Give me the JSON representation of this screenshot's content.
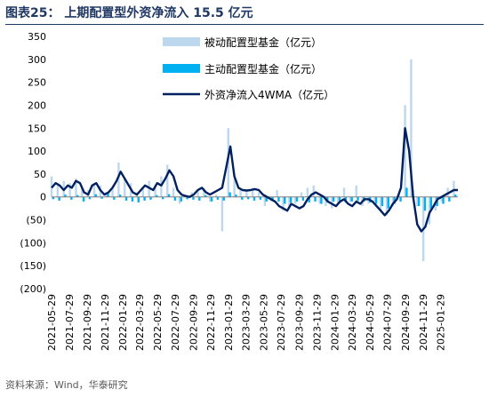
{
  "header": {
    "figure_label": "图表25：",
    "title": "上期配置型外资净流入 15.5 亿元"
  },
  "footer": {
    "source": "资料来源：Wind，华泰研究"
  },
  "colors": {
    "passive": "#bdd7ee",
    "active": "#00b0f0",
    "wma": "#002060",
    "title": "#1f3864"
  },
  "chart_data": {
    "type": "bar",
    "title": "上期配置型外资净流入 15.5 亿元",
    "xlabel": "",
    "ylabel": "",
    "ylim": [
      -200,
      350
    ],
    "yticks": [
      -200,
      -150,
      -100,
      -50,
      0,
      50,
      100,
      150,
      200,
      250,
      300,
      350
    ],
    "ytick_labels": [
      "(200)",
      "(150)",
      "(100)",
      "(50)",
      "0",
      "50",
      "100",
      "150",
      "200",
      "250",
      "300",
      "350"
    ],
    "x_start": "2021-05-29",
    "x_end": "2025-03-29",
    "xtick_labels": [
      "2021-05-29",
      "2021-07-29",
      "2021-09-29",
      "2021-11-29",
      "2022-01-29",
      "2022-03-29",
      "2022-05-29",
      "2022-07-29",
      "2022-09-29",
      "2022-11-29",
      "2023-01-29",
      "2023-03-29",
      "2023-05-29",
      "2023-07-29",
      "2023-09-29",
      "2023-11-29",
      "2024-01-29",
      "2024-03-29",
      "2024-05-29",
      "2024-07-29",
      "2024-09-29",
      "2024-11-29",
      "2025-01-29"
    ],
    "legend_position": "top-right",
    "series": [
      {
        "name": "被动配置型基金（亿元）",
        "kind": "bar",
        "color": "#bdd7ee",
        "x": [
          "2021-05-29",
          "2021-06-19",
          "2021-07-10",
          "2021-07-31",
          "2021-08-21",
          "2021-09-11",
          "2021-10-02",
          "2021-10-23",
          "2021-11-13",
          "2021-12-04",
          "2021-12-25",
          "2022-01-15",
          "2022-02-05",
          "2022-02-26",
          "2022-03-19",
          "2022-04-09",
          "2022-04-30",
          "2022-05-21",
          "2022-06-11",
          "2022-07-02",
          "2022-07-23",
          "2022-08-13",
          "2022-09-03",
          "2022-09-24",
          "2022-10-15",
          "2022-11-05",
          "2022-11-26",
          "2022-12-17",
          "2023-01-07",
          "2023-01-28",
          "2023-02-18",
          "2023-03-11",
          "2023-04-01",
          "2023-04-22",
          "2023-05-13",
          "2023-06-03",
          "2023-06-24",
          "2023-07-15",
          "2023-08-05",
          "2023-08-26",
          "2023-09-16",
          "2023-10-07",
          "2023-10-28",
          "2023-11-18",
          "2023-12-09",
          "2023-12-30",
          "2024-01-20",
          "2024-02-10",
          "2024-03-02",
          "2024-03-23",
          "2024-04-13",
          "2024-05-04",
          "2024-05-25",
          "2024-06-15",
          "2024-07-06",
          "2024-07-27",
          "2024-08-17",
          "2024-09-07",
          "2024-09-28",
          "2024-10-19",
          "2024-11-09",
          "2024-11-30",
          "2024-12-21",
          "2025-01-11",
          "2025-02-01",
          "2025-02-22",
          "2025-03-15"
        ],
        "values": [
          45,
          25,
          35,
          30,
          40,
          20,
          15,
          30,
          25,
          10,
          20,
          75,
          40,
          30,
          10,
          20,
          35,
          25,
          45,
          70,
          20,
          -15,
          5,
          10,
          15,
          20,
          -10,
          5,
          -75,
          150,
          40,
          20,
          15,
          20,
          10,
          -20,
          -10,
          15,
          -30,
          -20,
          -15,
          10,
          20,
          25,
          -15,
          -20,
          -25,
          -15,
          20,
          -10,
          25,
          -20,
          -15,
          -10,
          -30,
          -40,
          -20,
          5,
          200,
          300,
          -20,
          -140,
          -60,
          -30,
          -10,
          20,
          35
        ]
      },
      {
        "name": "主动配置型基金（亿元）",
        "kind": "bar",
        "color": "#00b0f0",
        "x": [
          "2021-05-29",
          "2021-06-19",
          "2021-07-10",
          "2021-07-31",
          "2021-08-21",
          "2021-09-11",
          "2021-10-02",
          "2021-10-23",
          "2021-11-13",
          "2021-12-04",
          "2021-12-25",
          "2022-01-15",
          "2022-02-05",
          "2022-02-26",
          "2022-03-19",
          "2022-04-09",
          "2022-04-30",
          "2022-05-21",
          "2022-06-11",
          "2022-07-02",
          "2022-07-23",
          "2022-08-13",
          "2022-09-03",
          "2022-09-24",
          "2022-10-15",
          "2022-11-05",
          "2022-11-26",
          "2022-12-17",
          "2023-01-07",
          "2023-01-28",
          "2023-02-18",
          "2023-03-11",
          "2023-04-01",
          "2023-04-22",
          "2023-05-13",
          "2023-06-03",
          "2023-06-24",
          "2023-07-15",
          "2023-08-05",
          "2023-08-26",
          "2023-09-16",
          "2023-10-07",
          "2023-10-28",
          "2023-11-18",
          "2023-12-09",
          "2023-12-30",
          "2024-01-20",
          "2024-02-10",
          "2024-03-02",
          "2024-03-23",
          "2024-04-13",
          "2024-05-04",
          "2024-05-25",
          "2024-06-15",
          "2024-07-06",
          "2024-07-27",
          "2024-08-17",
          "2024-09-07",
          "2024-09-28",
          "2024-10-19",
          "2024-11-09",
          "2024-11-30",
          "2024-12-21",
          "2025-01-11",
          "2025-02-01",
          "2025-02-22",
          "2025-03-15"
        ],
        "values": [
          -5,
          -8,
          5,
          -6,
          4,
          -10,
          -5,
          6,
          -4,
          8,
          -6,
          5,
          -8,
          -10,
          -12,
          -8,
          -6,
          4,
          -5,
          6,
          -8,
          -10,
          -5,
          -6,
          -8,
          4,
          -10,
          -6,
          -8,
          10,
          5,
          -6,
          -5,
          -8,
          -6,
          -10,
          -8,
          -10,
          -15,
          -12,
          -10,
          -8,
          -12,
          -10,
          -15,
          -12,
          -10,
          -8,
          -12,
          -10,
          -8,
          -10,
          -12,
          -15,
          -20,
          -25,
          -15,
          -10,
          20,
          15,
          -20,
          -30,
          -25,
          -20,
          -15,
          -10,
          5
        ]
      },
      {
        "name": "外资净流入4WMA（亿元）",
        "kind": "line",
        "color": "#002060",
        "x": [
          "2021-05-29",
          "2021-06-12",
          "2021-06-26",
          "2021-07-10",
          "2021-07-24",
          "2021-08-07",
          "2021-08-21",
          "2021-09-04",
          "2021-09-18",
          "2021-10-02",
          "2021-10-16",
          "2021-10-30",
          "2021-11-13",
          "2021-11-27",
          "2021-12-11",
          "2021-12-25",
          "2022-01-08",
          "2022-01-22",
          "2022-02-05",
          "2022-02-19",
          "2022-03-05",
          "2022-03-19",
          "2022-04-02",
          "2022-04-16",
          "2022-04-30",
          "2022-05-14",
          "2022-05-28",
          "2022-06-11",
          "2022-06-25",
          "2022-07-09",
          "2022-07-23",
          "2022-08-06",
          "2022-08-20",
          "2022-09-03",
          "2022-09-17",
          "2022-10-01",
          "2022-10-15",
          "2022-10-29",
          "2022-11-12",
          "2022-11-26",
          "2022-12-10",
          "2022-12-24",
          "2023-01-07",
          "2023-01-21",
          "2023-02-04",
          "2023-02-18",
          "2023-03-04",
          "2023-03-18",
          "2023-04-01",
          "2023-04-15",
          "2023-04-29",
          "2023-05-13",
          "2023-05-27",
          "2023-06-10",
          "2023-06-24",
          "2023-07-08",
          "2023-07-22",
          "2023-08-05",
          "2023-08-19",
          "2023-09-02",
          "2023-09-16",
          "2023-09-30",
          "2023-10-14",
          "2023-10-28",
          "2023-11-11",
          "2023-11-25",
          "2023-12-09",
          "2023-12-23",
          "2024-01-06",
          "2024-01-20",
          "2024-02-03",
          "2024-02-17",
          "2024-03-02",
          "2024-03-16",
          "2024-03-30",
          "2024-04-13",
          "2024-04-27",
          "2024-05-11",
          "2024-05-25",
          "2024-06-08",
          "2024-06-22",
          "2024-07-06",
          "2024-07-20",
          "2024-08-03",
          "2024-08-17",
          "2024-08-31",
          "2024-09-14",
          "2024-09-28",
          "2024-10-12",
          "2024-10-26",
          "2024-11-09",
          "2024-11-23",
          "2024-12-07",
          "2024-12-21",
          "2025-01-04",
          "2025-01-18",
          "2025-02-01",
          "2025-02-15",
          "2025-03-01",
          "2025-03-15",
          "2025-03-29"
        ],
        "values": [
          20,
          30,
          25,
          15,
          25,
          20,
          35,
          30,
          10,
          5,
          25,
          30,
          15,
          5,
          10,
          20,
          35,
          55,
          40,
          25,
          10,
          5,
          15,
          25,
          20,
          15,
          30,
          25,
          40,
          58,
          45,
          15,
          5,
          2,
          0,
          5,
          15,
          20,
          10,
          5,
          10,
          15,
          20,
          65,
          110,
          45,
          20,
          15,
          14,
          15,
          17,
          15,
          5,
          0,
          -5,
          -10,
          -20,
          -25,
          -30,
          -15,
          -20,
          -25,
          -20,
          -5,
          5,
          10,
          5,
          0,
          -10,
          -15,
          -20,
          -10,
          -5,
          -15,
          -20,
          -10,
          -15,
          -5,
          -5,
          -10,
          -20,
          -30,
          -40,
          -30,
          -15,
          -5,
          20,
          150,
          100,
          0,
          -60,
          -75,
          -65,
          -35,
          -20,
          -5,
          0,
          5,
          10,
          15,
          15
        ]
      }
    ]
  }
}
